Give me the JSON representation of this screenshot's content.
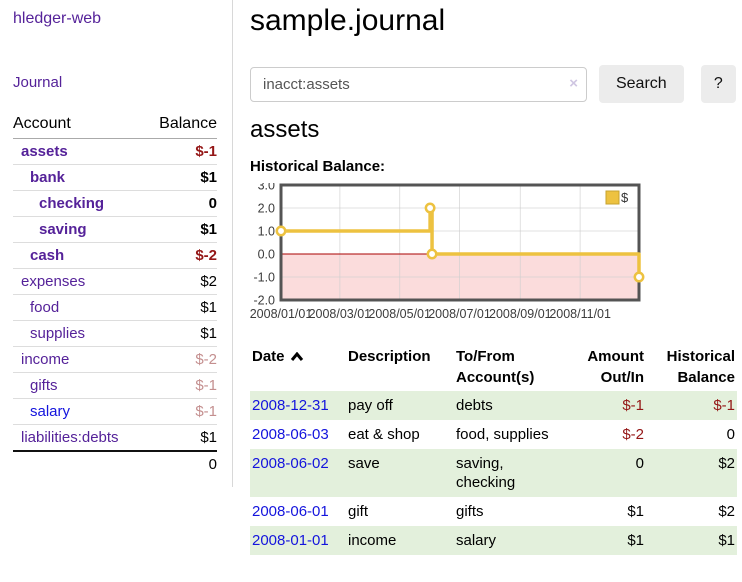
{
  "colors": {
    "purple": "#552299",
    "blue": "#1414dd",
    "neg_strong": "#941616",
    "neg_soft": "#c48f8f",
    "green_row": "#e3f0dc",
    "chart_gold": "#edc240",
    "chart_gold_border": "#c7a32e",
    "chart_negative_bg": "#fbdcdc",
    "zero_line": "#aa0000"
  },
  "sidebar": {
    "brand": "hledger-web",
    "journal_link": "Journal",
    "accounts_table": {
      "headers": {
        "account": "Account",
        "balance": "Balance"
      },
      "rows": [
        {
          "name": "assets",
          "depth": 1,
          "bold": true,
          "balance": "$-1",
          "balance_style": "neg-strong"
        },
        {
          "name": "bank",
          "depth": 2,
          "bold": true,
          "balance": "$1",
          "balance_style": ""
        },
        {
          "name": "checking",
          "depth": 3,
          "bold": true,
          "balance": "0",
          "balance_style": ""
        },
        {
          "name": "saving",
          "depth": 3,
          "bold": true,
          "balance": "$1",
          "balance_style": ""
        },
        {
          "name": "cash",
          "depth": 2,
          "bold": true,
          "balance": "$-2",
          "balance_style": "neg-strong"
        },
        {
          "name": "expenses",
          "depth": 1,
          "bold": false,
          "balance": "$2",
          "balance_style": ""
        },
        {
          "name": "food",
          "depth": 2,
          "bold": false,
          "balance": "$1",
          "balance_style": ""
        },
        {
          "name": "supplies",
          "depth": 2,
          "bold": false,
          "balance": "$1",
          "balance_style": ""
        },
        {
          "name": "income",
          "depth": 1,
          "bold": false,
          "balance": "$-2",
          "balance_style": "neg-soft"
        },
        {
          "name": "gifts",
          "depth": 2,
          "bold": false,
          "balance": "$-1",
          "balance_style": "neg-soft"
        },
        {
          "name": "salary",
          "depth": 2,
          "bold": false,
          "balance": "$-1",
          "balance_style": "neg-soft",
          "link_style": "unvisited"
        },
        {
          "name": "liabilities:debts",
          "depth": 1,
          "bold": false,
          "balance": "$1",
          "balance_style": ""
        }
      ],
      "total": "0"
    }
  },
  "page": {
    "title": "sample.journal",
    "account_heading": "assets",
    "chart_label": "Historical Balance:"
  },
  "search": {
    "value": "inacct:assets",
    "clear_icon": "×",
    "button_label": "Search",
    "help_label": "?"
  },
  "chart_data": {
    "type": "line",
    "title": "Historical Balance",
    "series": [
      {
        "name": "$",
        "step": true,
        "points": [
          [
            "2008-01-01",
            1.0
          ],
          [
            "2008-06-01",
            2.0
          ],
          [
            "2008-06-03",
            0.0
          ],
          [
            "2008-12-31",
            -1.0
          ]
        ]
      }
    ],
    "x_ticks": [
      "2008/01/01",
      "2008/03/01",
      "2008/05/01",
      "2008/07/01",
      "2008/09/01",
      "2008/11/01"
    ],
    "y_ticks": [
      3.0,
      2.0,
      1.0,
      0.0,
      -1.0,
      -2.0
    ],
    "xlim": [
      "2008-01-01",
      "2008-12-31"
    ],
    "ylim": [
      -2.0,
      3.0
    ],
    "grid": true,
    "legend_position": "top-right",
    "negative_region_shaded": true
  },
  "register_table": {
    "headers": {
      "date": "Date",
      "description": "Description",
      "accounts": "To/From Account(s)",
      "amount": "Amount Out/In",
      "balance": "Historical Balance"
    },
    "sort": {
      "column": "date",
      "direction": "ascending"
    },
    "rows": [
      {
        "date": "2008-12-31",
        "description": "pay off",
        "accounts": "debts",
        "amount": "$-1",
        "amount_neg": true,
        "balance": "$-1",
        "balance_neg": true
      },
      {
        "date": "2008-06-03",
        "description": "eat & shop",
        "accounts": "food, supplies",
        "amount": "$-2",
        "amount_neg": true,
        "balance": "0",
        "balance_neg": false
      },
      {
        "date": "2008-06-02",
        "description": "save",
        "accounts": "saving, checking",
        "amount": "0",
        "amount_neg": false,
        "balance": "$2",
        "balance_neg": false
      },
      {
        "date": "2008-06-01",
        "description": "gift",
        "accounts": "gifts",
        "amount": "$1",
        "amount_neg": false,
        "balance": "$2",
        "balance_neg": false
      },
      {
        "date": "2008-01-01",
        "description": "income",
        "accounts": "salary",
        "amount": "$1",
        "amount_neg": false,
        "balance": "$1",
        "balance_neg": false
      }
    ]
  }
}
